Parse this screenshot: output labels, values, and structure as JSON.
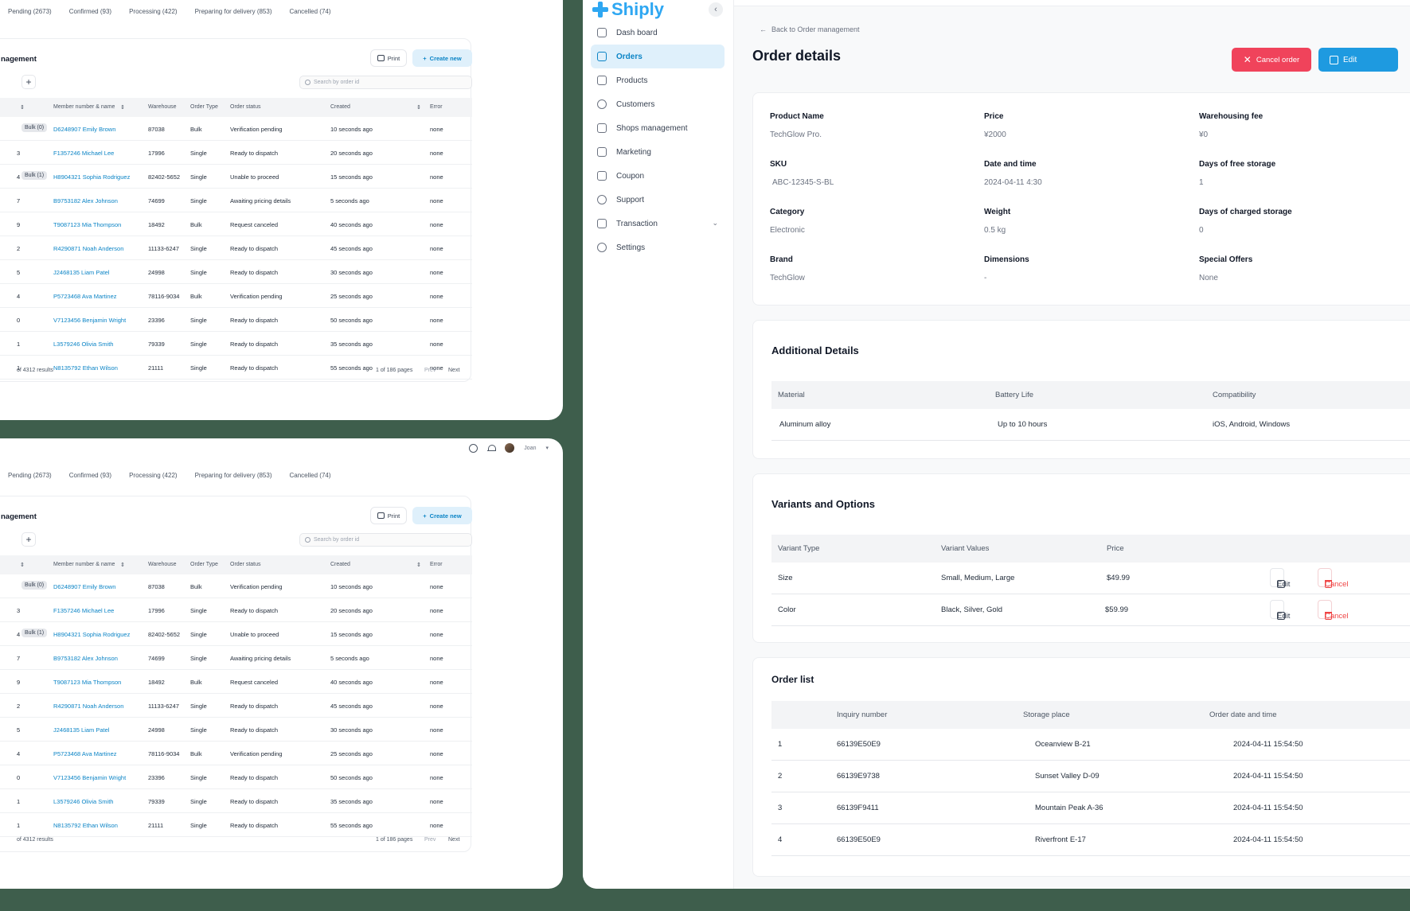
{
  "om": {
    "tabs": [
      "Pending (2673)",
      "Confirmed (93)",
      "Processing (422)",
      "Preparing for delivery (853)",
      "Cancelled (74)"
    ],
    "title": "nagement",
    "print_label": "Print",
    "create_label": "Create new",
    "search_placeholder": "Search by order id",
    "user_name": "Joan",
    "headers": {
      "member": "Member number & name",
      "warehouse": "Warehouse",
      "type": "Order Type",
      "status": "Order status",
      "created": "Created",
      "error": "Error"
    },
    "rows": [
      {
        "id": "",
        "bulk": "Bulk (0)",
        "member": "D6248907 Emily Brown",
        "warehouse": "87038",
        "type": "Bulk",
        "status": "Verification pending",
        "created": "10 seconds ago",
        "error": "none"
      },
      {
        "id": "3",
        "bulk": "",
        "member": "F1357246 Michael Lee",
        "warehouse": "17996",
        "type": "Single",
        "status": "Ready to dispatch",
        "created": "20 seconds ago",
        "error": "none"
      },
      {
        "id": "4",
        "bulk": "Bulk (1)",
        "member": "H8904321 Sophia Rodriguez",
        "warehouse": "82402-5652",
        "type": "Single",
        "status": "Unable to proceed",
        "created": "15 seconds ago",
        "error": "none"
      },
      {
        "id": "7",
        "bulk": "",
        "member": "B9753182 Alex Johnson",
        "warehouse": "74699",
        "type": "Single",
        "status": "Awaiting pricing details",
        "created": "5 seconds ago",
        "error": "none"
      },
      {
        "id": "9",
        "bulk": "",
        "member": "T9087123 Mia Thompson",
        "warehouse": "18492",
        "type": "Bulk",
        "status": "Request canceled",
        "created": "40 seconds ago",
        "error": "none"
      },
      {
        "id": "2",
        "bulk": "",
        "member": "R4290871 Noah Anderson",
        "warehouse": "11133-6247",
        "type": "Single",
        "status": "Ready to dispatch",
        "created": "45 seconds ago",
        "error": "none"
      },
      {
        "id": "5",
        "bulk": "",
        "member": "J2468135 Liam Patel",
        "warehouse": "24998",
        "type": "Single",
        "status": "Ready to dispatch",
        "created": "30 seconds ago",
        "error": "none"
      },
      {
        "id": "4",
        "bulk": "",
        "member": "P5723468 Ava Martinez",
        "warehouse": "78116-9034",
        "type": "Bulk",
        "status": "Verification pending",
        "created": "25 seconds ago",
        "error": "none"
      },
      {
        "id": "0",
        "bulk": "",
        "member": "V7123456 Benjamin Wright",
        "warehouse": "23396",
        "type": "Single",
        "status": "Ready to dispatch",
        "created": "50 seconds ago",
        "error": "none"
      },
      {
        "id": "1",
        "bulk": "",
        "member": "L3579246 Olivia Smith",
        "warehouse": "79339",
        "type": "Single",
        "status": "Ready to dispatch",
        "created": "35 seconds ago",
        "error": "none"
      },
      {
        "id": "1",
        "bulk": "",
        "member": "N8135792 Ethan Wilson",
        "warehouse": "21111",
        "type": "Single",
        "status": "Ready to dispatch",
        "created": "55 seconds ago",
        "error": "none"
      }
    ],
    "results": "of 4312 results",
    "pages": "1 of 186 pages",
    "prev": "Prev",
    "next": "Next"
  },
  "app": {
    "brand": "Shiply",
    "nav": [
      {
        "label": "Dash board",
        "icon": "dashboard-icon"
      },
      {
        "label": "Orders",
        "icon": "basket-icon",
        "active": true
      },
      {
        "label": "Products",
        "icon": "products-icon"
      },
      {
        "label": "Customers",
        "icon": "customers-icon"
      },
      {
        "label": "Shops management",
        "icon": "cart-icon"
      },
      {
        "label": "Marketing",
        "icon": "megaphone-icon"
      },
      {
        "label": "Coupon",
        "icon": "tag-icon"
      },
      {
        "label": "Support",
        "icon": "headset-icon"
      },
      {
        "label": "Transaction",
        "icon": "receipt-icon",
        "expandable": true
      },
      {
        "label": "Settings",
        "icon": "gear-icon"
      }
    ],
    "back_label": "Back to Order management",
    "page_title": "Order details",
    "cancel_order_label": "Cancel order",
    "edit_label": "Edit",
    "details": {
      "product_name": {
        "label": "Product Name",
        "value": "TechGlow Pro."
      },
      "price": {
        "label": "Price",
        "value": "¥2000"
      },
      "warehousing_fee": {
        "label": "Warehousing fee",
        "value": "¥0"
      },
      "sku": {
        "label": "SKU",
        "value": "ABC-12345-S-BL"
      },
      "date_time": {
        "label": "Date and time",
        "value": "2024-04-11 4:30"
      },
      "free_storage": {
        "label": "Days of free storage",
        "value": "1"
      },
      "category": {
        "label": "Category",
        "value": "Electronic"
      },
      "weight": {
        "label": "Weight",
        "value": "0.5 kg"
      },
      "charged_storage": {
        "label": "Days of charged storage",
        "value": "0"
      },
      "brand": {
        "label": "Brand",
        "value": "TechGlow"
      },
      "dimensions": {
        "label": "Dimensions",
        "value": "-"
      },
      "special_offers": {
        "label": "Special Offers",
        "value": "None"
      }
    },
    "additional": {
      "title": "Additional Details",
      "headers": [
        "Material",
        "Battery Life",
        "Compatibility"
      ],
      "row": [
        "Aluminum alloy",
        "Up to 10 hours",
        "iOS, Android, Windows"
      ]
    },
    "variants": {
      "title": "Variants and Options",
      "headers": [
        "Variant Type",
        "Variant Values",
        "Price"
      ],
      "rows": [
        {
          "type": "Size",
          "values": "Small, Medium, Large",
          "price": "$49.99"
        },
        {
          "type": "Color",
          "values": "Black, Silver, Gold",
          "price": "$59.99"
        }
      ],
      "edit_label": "Edit",
      "cancel_label": "Cancel"
    },
    "orders": {
      "title": "Order list",
      "headers": [
        "Inquiry number",
        "Storage place",
        "Order date and time"
      ],
      "rows": [
        {
          "n": "1",
          "inquiry": "66139E50E9",
          "place": "Oceanview B-21",
          "date": "2024-04-11 15:54:50"
        },
        {
          "n": "2",
          "inquiry": "66139E9738",
          "place": "Sunset Valley D-09",
          "date": "2024-04-11 15:54:50"
        },
        {
          "n": "3",
          "inquiry": "66139F9411",
          "place": "Mountain Peak A-36",
          "date": "2024-04-11 15:54:50"
        },
        {
          "n": "4",
          "inquiry": "66139E50E9",
          "place": "Riverfront E-17",
          "date": "2024-04-11 15:54:50"
        }
      ]
    }
  }
}
